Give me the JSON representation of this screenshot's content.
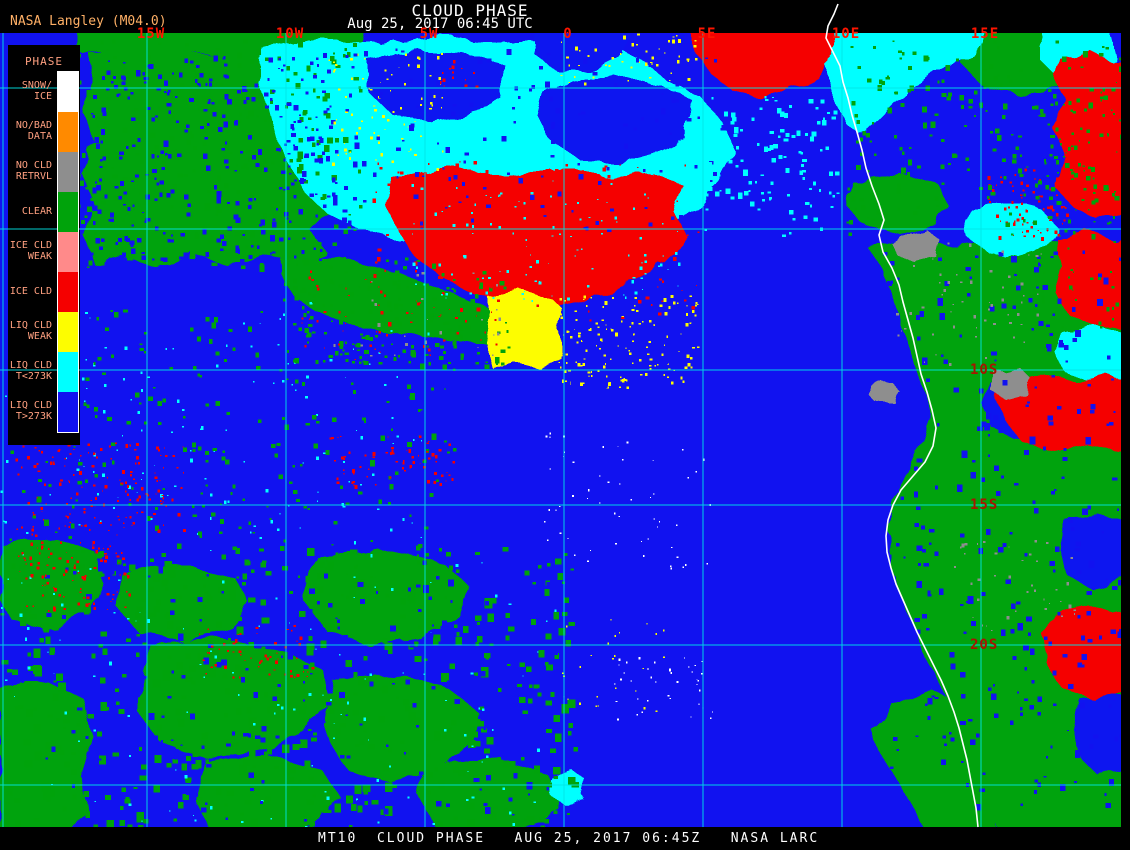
{
  "header": {
    "source_label": "NASA Langley (M04.0)",
    "title": "CLOUD PHASE",
    "subtitle": "Aug 25, 2017 06:45 UTC"
  },
  "footer": {
    "text": "MT10  CLOUD PHASE   AUG 25, 2017 06:45Z   NASA LARC"
  },
  "legend": {
    "title": "PHASE",
    "items": [
      {
        "label": "SNOW/\nICE",
        "color": "#ffffff"
      },
      {
        "label": "NO/BAD\nDATA",
        "color": "#ff8a00"
      },
      {
        "label": "NO CLD\nRETRVL",
        "color": "#8e8e8e"
      },
      {
        "label": "CLEAR",
        "color": "#00a30b"
      },
      {
        "label": "ICE CLD\nWEAK",
        "color": "#ff8a8a"
      },
      {
        "label": "ICE CLD",
        "color": "#f50000"
      },
      {
        "label": "LIQ CLD\nWEAK",
        "color": "#fdfd00"
      },
      {
        "label": "LIQ CLD\nT<273K",
        "color": "#00ffff"
      },
      {
        "label": "LIQ CLD\nT>273K",
        "color": "#1112f0"
      }
    ]
  },
  "map": {
    "longitude_labels": [
      "15W",
      "10W",
      "5W",
      "0",
      "5E",
      "10E",
      "15E"
    ],
    "latitude_labels": [
      "10S",
      "15S",
      "20S"
    ]
  },
  "colors": {
    "lon_label": "#ff1500",
    "lat_label": "#a81400",
    "legend_text": "#ffa080",
    "source_label": "#ffb066",
    "grid": "#00e6e6",
    "ocean_cloud_blue": "#1112f0",
    "clear_green": "#00a30b",
    "supercooled_cyan": "#00ffff",
    "ice_red": "#f50000",
    "weak_liquid_yellow": "#fdfd00",
    "coastline": "#ffffff"
  }
}
